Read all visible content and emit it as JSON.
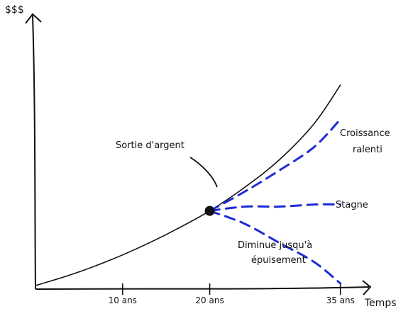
{
  "chart_data": {
    "type": "line",
    "y_axis_label": "$$$",
    "x_axis_label": "Temps",
    "x_ticks": [
      {
        "value": 10,
        "label": "10 ans"
      },
      {
        "value": 20,
        "label": "20 ans"
      },
      {
        "value": 35,
        "label": "35 ans"
      }
    ],
    "xlim": [
      0,
      36
    ],
    "ylim": [
      0,
      100
    ],
    "series": [
      {
        "style": "solid",
        "color": "#111111",
        "x": [
          0,
          4,
          8,
          12,
          16,
          20,
          24,
          28,
          32,
          35
        ],
        "y": [
          1,
          6,
          12,
          19,
          27,
          36,
          47,
          60,
          77,
          95
        ]
      },
      {
        "style": "dashed",
        "color": "#1f2bd6",
        "x": [
          20,
          24,
          28,
          32,
          35
        ],
        "y": [
          36,
          45,
          55,
          66,
          79
        ]
      },
      {
        "style": "dashed",
        "color": "#1f2bd6",
        "x": [
          20,
          24,
          28,
          32,
          35
        ],
        "y": [
          36,
          38,
          38,
          39,
          39
        ]
      },
      {
        "style": "dashed",
        "color": "#1f2bd6",
        "x": [
          20,
          24,
          28,
          32,
          35
        ],
        "y": [
          36,
          30,
          21,
          12,
          2
        ]
      }
    ],
    "point": {
      "x": 20,
      "y": 36
    },
    "annotations": {
      "exit": "Sortie d'argent",
      "growth_line1": "Croissance",
      "growth_line2": "ralenti",
      "stagnate": "Stagne",
      "decline_line1": "Diminue jusqu'à",
      "decline_line2": "épuisement"
    }
  }
}
